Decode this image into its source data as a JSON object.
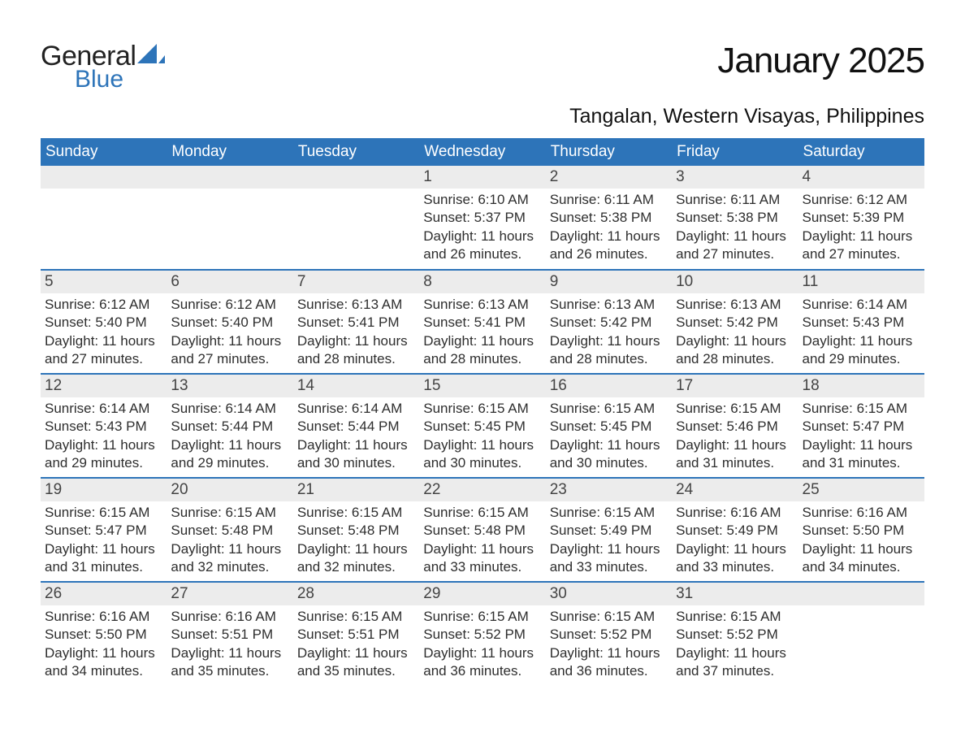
{
  "logo": {
    "text1": "General",
    "text2": "Blue",
    "accent_color": "#2d74b9"
  },
  "title": "January 2025",
  "location": "Tangalan, Western Visayas, Philippines",
  "colors": {
    "header_bg": "#2d74b9",
    "header_text": "#ffffff",
    "daynum_bg": "#ececec",
    "daynum_text": "#444444",
    "body_text": "#2e2e2e",
    "rule": "#2d74b9",
    "page_bg": "#ffffff"
  },
  "typography": {
    "month_title_pt": 44,
    "location_pt": 25,
    "weekday_pt": 19,
    "daynum_pt": 19,
    "body_pt": 17,
    "family": "Arial"
  },
  "weekdays": [
    "Sunday",
    "Monday",
    "Tuesday",
    "Wednesday",
    "Thursday",
    "Friday",
    "Saturday"
  ],
  "weeks": [
    [
      null,
      null,
      null,
      {
        "n": "1",
        "sunrise": "Sunrise: 6:10 AM",
        "sunset": "Sunset: 5:37 PM",
        "d1": "Daylight: 11 hours",
        "d2": "and 26 minutes."
      },
      {
        "n": "2",
        "sunrise": "Sunrise: 6:11 AM",
        "sunset": "Sunset: 5:38 PM",
        "d1": "Daylight: 11 hours",
        "d2": "and 26 minutes."
      },
      {
        "n": "3",
        "sunrise": "Sunrise: 6:11 AM",
        "sunset": "Sunset: 5:38 PM",
        "d1": "Daylight: 11 hours",
        "d2": "and 27 minutes."
      },
      {
        "n": "4",
        "sunrise": "Sunrise: 6:12 AM",
        "sunset": "Sunset: 5:39 PM",
        "d1": "Daylight: 11 hours",
        "d2": "and 27 minutes."
      }
    ],
    [
      {
        "n": "5",
        "sunrise": "Sunrise: 6:12 AM",
        "sunset": "Sunset: 5:40 PM",
        "d1": "Daylight: 11 hours",
        "d2": "and 27 minutes."
      },
      {
        "n": "6",
        "sunrise": "Sunrise: 6:12 AM",
        "sunset": "Sunset: 5:40 PM",
        "d1": "Daylight: 11 hours",
        "d2": "and 27 minutes."
      },
      {
        "n": "7",
        "sunrise": "Sunrise: 6:13 AM",
        "sunset": "Sunset: 5:41 PM",
        "d1": "Daylight: 11 hours",
        "d2": "and 28 minutes."
      },
      {
        "n": "8",
        "sunrise": "Sunrise: 6:13 AM",
        "sunset": "Sunset: 5:41 PM",
        "d1": "Daylight: 11 hours",
        "d2": "and 28 minutes."
      },
      {
        "n": "9",
        "sunrise": "Sunrise: 6:13 AM",
        "sunset": "Sunset: 5:42 PM",
        "d1": "Daylight: 11 hours",
        "d2": "and 28 minutes."
      },
      {
        "n": "10",
        "sunrise": "Sunrise: 6:13 AM",
        "sunset": "Sunset: 5:42 PM",
        "d1": "Daylight: 11 hours",
        "d2": "and 28 minutes."
      },
      {
        "n": "11",
        "sunrise": "Sunrise: 6:14 AM",
        "sunset": "Sunset: 5:43 PM",
        "d1": "Daylight: 11 hours",
        "d2": "and 29 minutes."
      }
    ],
    [
      {
        "n": "12",
        "sunrise": "Sunrise: 6:14 AM",
        "sunset": "Sunset: 5:43 PM",
        "d1": "Daylight: 11 hours",
        "d2": "and 29 minutes."
      },
      {
        "n": "13",
        "sunrise": "Sunrise: 6:14 AM",
        "sunset": "Sunset: 5:44 PM",
        "d1": "Daylight: 11 hours",
        "d2": "and 29 minutes."
      },
      {
        "n": "14",
        "sunrise": "Sunrise: 6:14 AM",
        "sunset": "Sunset: 5:44 PM",
        "d1": "Daylight: 11 hours",
        "d2": "and 30 minutes."
      },
      {
        "n": "15",
        "sunrise": "Sunrise: 6:15 AM",
        "sunset": "Sunset: 5:45 PM",
        "d1": "Daylight: 11 hours",
        "d2": "and 30 minutes."
      },
      {
        "n": "16",
        "sunrise": "Sunrise: 6:15 AM",
        "sunset": "Sunset: 5:45 PM",
        "d1": "Daylight: 11 hours",
        "d2": "and 30 minutes."
      },
      {
        "n": "17",
        "sunrise": "Sunrise: 6:15 AM",
        "sunset": "Sunset: 5:46 PM",
        "d1": "Daylight: 11 hours",
        "d2": "and 31 minutes."
      },
      {
        "n": "18",
        "sunrise": "Sunrise: 6:15 AM",
        "sunset": "Sunset: 5:47 PM",
        "d1": "Daylight: 11 hours",
        "d2": "and 31 minutes."
      }
    ],
    [
      {
        "n": "19",
        "sunrise": "Sunrise: 6:15 AM",
        "sunset": "Sunset: 5:47 PM",
        "d1": "Daylight: 11 hours",
        "d2": "and 31 minutes."
      },
      {
        "n": "20",
        "sunrise": "Sunrise: 6:15 AM",
        "sunset": "Sunset: 5:48 PM",
        "d1": "Daylight: 11 hours",
        "d2": "and 32 minutes."
      },
      {
        "n": "21",
        "sunrise": "Sunrise: 6:15 AM",
        "sunset": "Sunset: 5:48 PM",
        "d1": "Daylight: 11 hours",
        "d2": "and 32 minutes."
      },
      {
        "n": "22",
        "sunrise": "Sunrise: 6:15 AM",
        "sunset": "Sunset: 5:48 PM",
        "d1": "Daylight: 11 hours",
        "d2": "and 33 minutes."
      },
      {
        "n": "23",
        "sunrise": "Sunrise: 6:15 AM",
        "sunset": "Sunset: 5:49 PM",
        "d1": "Daylight: 11 hours",
        "d2": "and 33 minutes."
      },
      {
        "n": "24",
        "sunrise": "Sunrise: 6:16 AM",
        "sunset": "Sunset: 5:49 PM",
        "d1": "Daylight: 11 hours",
        "d2": "and 33 minutes."
      },
      {
        "n": "25",
        "sunrise": "Sunrise: 6:16 AM",
        "sunset": "Sunset: 5:50 PM",
        "d1": "Daylight: 11 hours",
        "d2": "and 34 minutes."
      }
    ],
    [
      {
        "n": "26",
        "sunrise": "Sunrise: 6:16 AM",
        "sunset": "Sunset: 5:50 PM",
        "d1": "Daylight: 11 hours",
        "d2": "and 34 minutes."
      },
      {
        "n": "27",
        "sunrise": "Sunrise: 6:16 AM",
        "sunset": "Sunset: 5:51 PM",
        "d1": "Daylight: 11 hours",
        "d2": "and 35 minutes."
      },
      {
        "n": "28",
        "sunrise": "Sunrise: 6:15 AM",
        "sunset": "Sunset: 5:51 PM",
        "d1": "Daylight: 11 hours",
        "d2": "and 35 minutes."
      },
      {
        "n": "29",
        "sunrise": "Sunrise: 6:15 AM",
        "sunset": "Sunset: 5:52 PM",
        "d1": "Daylight: 11 hours",
        "d2": "and 36 minutes."
      },
      {
        "n": "30",
        "sunrise": "Sunrise: 6:15 AM",
        "sunset": "Sunset: 5:52 PM",
        "d1": "Daylight: 11 hours",
        "d2": "and 36 minutes."
      },
      {
        "n": "31",
        "sunrise": "Sunrise: 6:15 AM",
        "sunset": "Sunset: 5:52 PM",
        "d1": "Daylight: 11 hours",
        "d2": "and 37 minutes."
      },
      null
    ]
  ]
}
